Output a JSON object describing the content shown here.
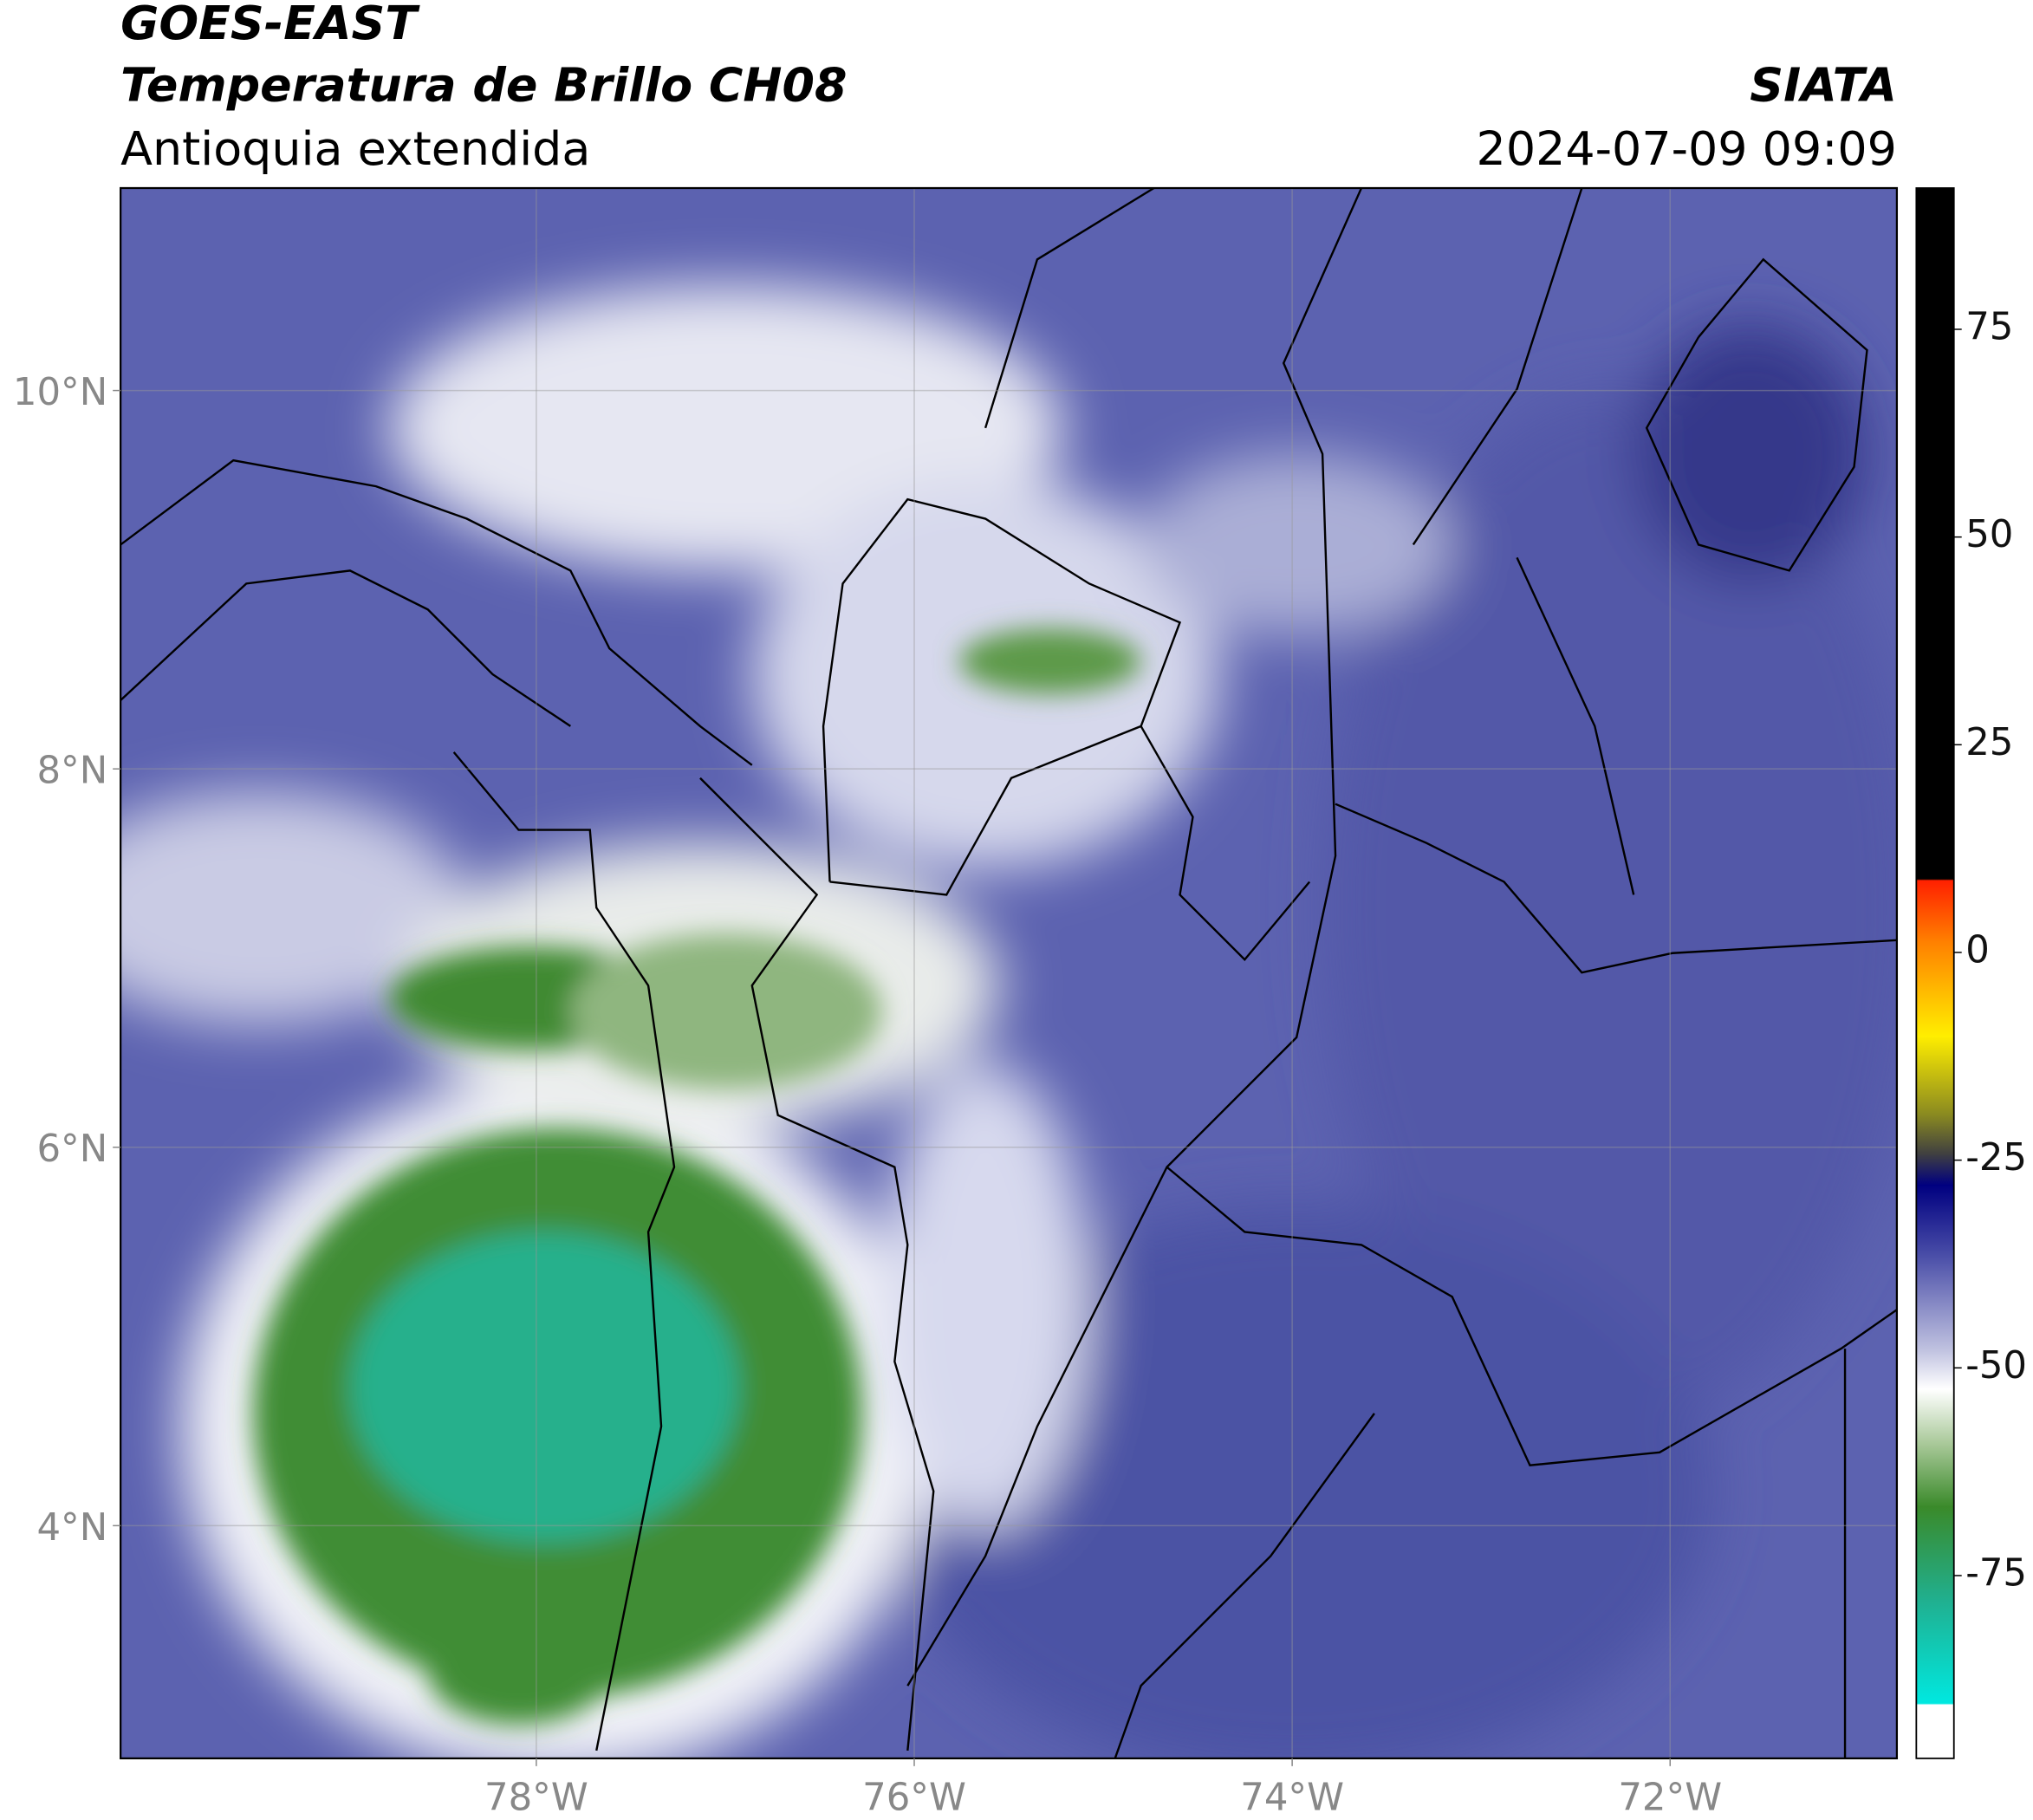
{
  "header": {
    "title_line1": "GOES-EAST",
    "title_line2": "Temperatura de Brillo CH08",
    "subtitle": "Antioquia extendida",
    "organization": "SIATA",
    "datetime": "2024-07-09 09:09"
  },
  "map": {
    "xlim": [
      -80.2,
      -70.8
    ],
    "ylim": [
      2.77,
      11.07
    ],
    "xticks": [
      {
        "value": -78,
        "label": "78°W"
      },
      {
        "value": -76,
        "label": "76°W"
      },
      {
        "value": -74,
        "label": "74°W"
      },
      {
        "value": -72,
        "label": "72°W"
      }
    ],
    "yticks": [
      {
        "value": 4,
        "label": "4°N"
      },
      {
        "value": 6,
        "label": "6°N"
      },
      {
        "value": 8,
        "label": "8°N"
      },
      {
        "value": 10,
        "label": "10°N"
      }
    ],
    "grid": true
  },
  "colorbar": {
    "lim": [
      -97,
      92
    ],
    "ticks": [
      75,
      50,
      25,
      0,
      -25,
      -50,
      -75
    ]
  }
}
